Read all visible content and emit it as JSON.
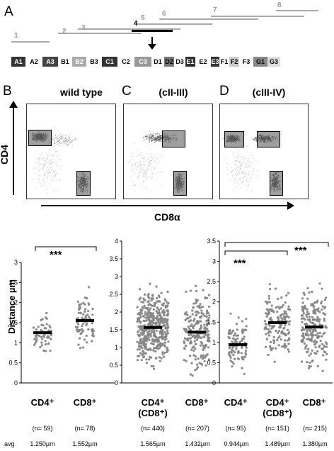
{
  "panels": {
    "A": "A",
    "B": "B",
    "C": "C",
    "D": "D"
  },
  "chromosome": {
    "bands": [
      {
        "name": "A1",
        "color": "#333",
        "text": "#fff"
      },
      {
        "name": "A2",
        "color": "#fff",
        "text": "#000"
      },
      {
        "name": "A3",
        "color": "#444",
        "text": "#fff"
      },
      {
        "name": "B1",
        "color": "#fff",
        "text": "#000"
      },
      {
        "name": "B2",
        "color": "#aaa",
        "text": "#fff"
      },
      {
        "name": "B3",
        "color": "#fff",
        "text": "#000"
      },
      {
        "name": "C1",
        "color": "#333",
        "text": "#fff"
      },
      {
        "name": "C2",
        "color": "#fff",
        "text": "#000"
      },
      {
        "name": "C3",
        "color": "#999",
        "text": "#fff"
      },
      {
        "name": "D1",
        "color": "#fff",
        "text": "#000"
      },
      {
        "name": "D2",
        "color": "#777",
        "text": "#000"
      },
      {
        "name": "D3",
        "color": "#fff",
        "text": "#000"
      },
      {
        "name": "E1",
        "color": "#333",
        "text": "#fff"
      },
      {
        "name": "E2",
        "color": "#fff",
        "text": "#000"
      },
      {
        "name": "E3",
        "color": "#333",
        "text": "#fff"
      },
      {
        "name": "F1",
        "color": "#fff",
        "text": "#000"
      },
      {
        "name": "F2",
        "color": "#ccc",
        "text": "#000"
      },
      {
        "name": "F3",
        "color": "#fff",
        "text": "#000"
      },
      {
        "name": "G1",
        "color": "#888",
        "text": "#000"
      },
      {
        "name": "G3",
        "color": "#ddd",
        "text": "#000"
      }
    ],
    "segments": [
      "1",
      "2",
      "3",
      "4",
      "5",
      "6",
      "7",
      "8"
    ]
  },
  "facs": {
    "titles": [
      "wild type",
      "(cII-III)",
      "(cIII-IV)"
    ],
    "ylabel": "CD4",
    "xlabel": "CD8α"
  },
  "chart_data": [
    {
      "type": "scatter",
      "ylabel": "Distance µm",
      "ylim": [
        0,
        3
      ],
      "yticks": [
        "0",
        "0.5",
        "1",
        "1.5",
        "2",
        "2.5",
        "3"
      ],
      "categories": [
        "CD4⁺",
        "CD8⁺"
      ],
      "n": [
        "(n= 59)",
        "(n= 78)"
      ],
      "avg": [
        "1.250µm",
        "1.552µm"
      ],
      "means": [
        1.25,
        1.552
      ],
      "significance": "***"
    },
    {
      "type": "scatter",
      "ylim": [
        0,
        4
      ],
      "yticks": [
        "0",
        "0.5",
        "1",
        "1.5",
        "2",
        "2.5",
        "3",
        "3.5",
        "4"
      ],
      "categories": [
        "CD4⁺ (CD8⁺)",
        "CD8⁺"
      ],
      "n": [
        "(n= 440)",
        "(n= 207)"
      ],
      "avg": [
        "1.565µm",
        "1.432µm"
      ],
      "means": [
        1.565,
        1.432
      ]
    },
    {
      "type": "scatter",
      "ylim": [
        0,
        3.5
      ],
      "yticks": [
        "0",
        "0.5",
        "1",
        "1.5",
        "2",
        "2.5",
        "3",
        "3.5"
      ],
      "categories": [
        "CD4⁺",
        "CD4⁺ (CD8⁺)",
        "CD8⁺"
      ],
      "n": [
        "(n= 95)",
        "(n= 151)",
        "(n= 215)"
      ],
      "avg": [
        "0.944µm",
        "1.489µm",
        "1.380µm"
      ],
      "means": [
        0.944,
        1.489,
        1.38
      ],
      "significance": [
        "***",
        "***"
      ]
    }
  ],
  "avg_label": "avg"
}
